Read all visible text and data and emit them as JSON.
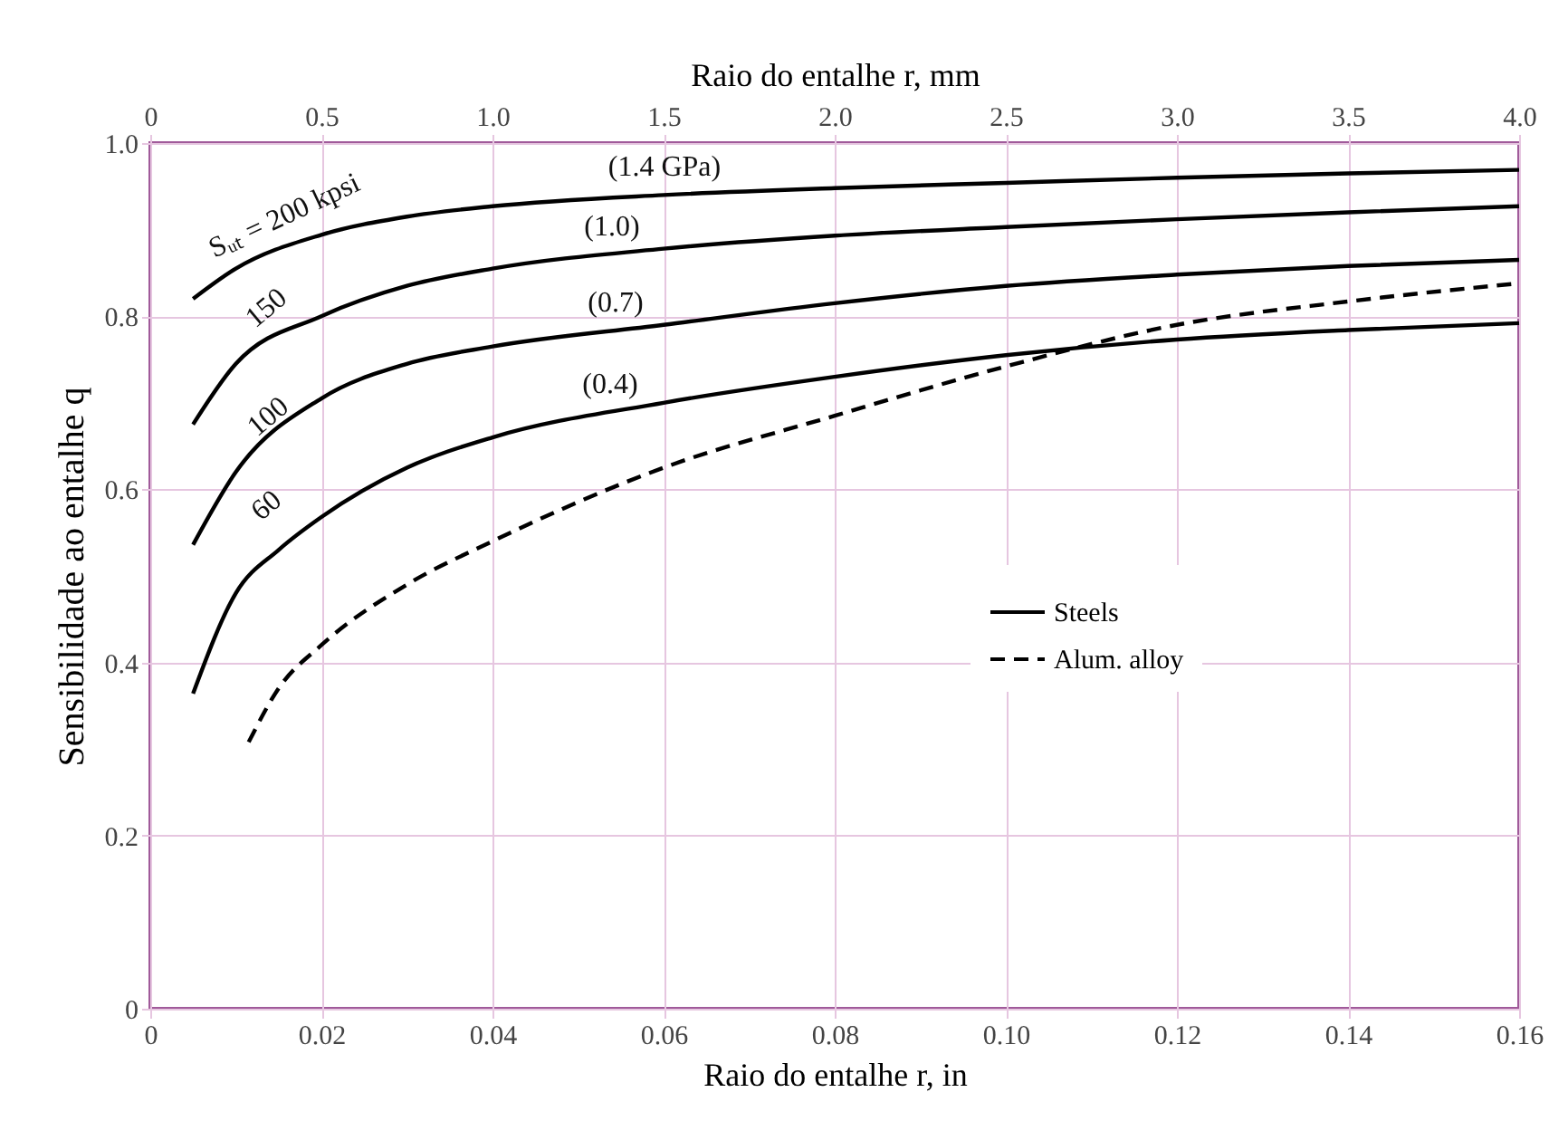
{
  "chart_data": {
    "type": "line",
    "xlabel": "Raio do entalhe  r, in",
    "x2label": "Raio do entalhe  r, mm",
    "ylabel": "Sensibilidade ao entalhe  q",
    "xlim": [
      0,
      0.16
    ],
    "xticks": [
      0,
      0.02,
      0.04,
      0.06,
      0.08,
      {
        "value": 0.1,
        "label": "0.10"
      },
      0.12,
      0.14,
      0.16
    ],
    "x2lim": [
      0,
      4.0
    ],
    "x2ticks": [
      0,
      0.5,
      {
        "value": 1,
        "label": "1.0"
      },
      1.5,
      {
        "value": 2,
        "label": "2.0"
      },
      2.5,
      {
        "value": 3,
        "label": "3.0"
      },
      3.5,
      {
        "value": 4,
        "label": "4.0"
      }
    ],
    "ylim": [
      0,
      1.0
    ],
    "yticks": [
      0,
      0.2,
      0.4,
      0.6,
      0.8,
      {
        "value": 1,
        "label": "1.0"
      }
    ],
    "grid": true,
    "legend": "bottom right",
    "marker": "none",
    "series": [
      {
        "name": "Steels",
        "color": "#000000",
        "line_style": "solid",
        "x": [
          0.005,
          0.01,
          0.02,
          0.03,
          0.04,
          0.06,
          0.08,
          0.1,
          0.12,
          0.14,
          0.16
        ],
        "values": [
          0.82,
          0.855,
          0.894,
          0.915,
          0.927,
          0.94,
          0.948,
          0.954,
          0.96,
          0.965,
          0.969
        ]
      },
      {
        "color": "#000000",
        "line_style": "solid",
        "x": [
          0.005,
          0.01,
          0.02,
          0.03,
          0.04,
          0.06,
          0.08,
          0.1,
          0.12,
          0.14,
          0.16
        ],
        "values": [
          0.675,
          0.745,
          0.8,
          0.835,
          0.855,
          0.878,
          0.893,
          0.903,
          0.912,
          0.92,
          0.927
        ]
      },
      {
        "color": "#000000",
        "line_style": "solid",
        "x": [
          0.005,
          0.01,
          0.02,
          0.03,
          0.04,
          0.06,
          0.08,
          0.1,
          0.12,
          0.14,
          0.16
        ],
        "values": [
          0.536,
          0.62,
          0.705,
          0.745,
          0.765,
          0.79,
          0.815,
          0.835,
          0.848,
          0.858,
          0.865
        ]
      },
      {
        "color": "#000000",
        "line_style": "solid",
        "x": [
          0.005,
          0.01,
          0.015,
          0.02,
          0.03,
          0.04,
          0.06,
          0.08,
          0.1,
          0.12,
          0.14,
          0.16
        ],
        "values": [
          0.364,
          0.48,
          0.53,
          0.568,
          0.625,
          0.66,
          0.7,
          0.73,
          0.755,
          0.773,
          0.784,
          0.792
        ]
      },
      {
        "name": "Alum. alloy",
        "color": "#000000",
        "line_style": "dashed",
        "x": [
          0.0115,
          0.015,
          0.02,
          0.03,
          0.04,
          0.06,
          0.08,
          0.1,
          0.12,
          0.14,
          0.16
        ],
        "values": [
          0.308,
          0.37,
          0.42,
          0.49,
          0.54,
          0.625,
          0.685,
          0.742,
          0.79,
          0.817,
          0.838
        ]
      }
    ],
    "annotations": [
      "Sᵤₜ = 200 kpsi",
      "150",
      "100",
      "60",
      "(1.4 GPa)",
      "(1.0)",
      "(0.7)",
      "(0.4)"
    ]
  }
}
